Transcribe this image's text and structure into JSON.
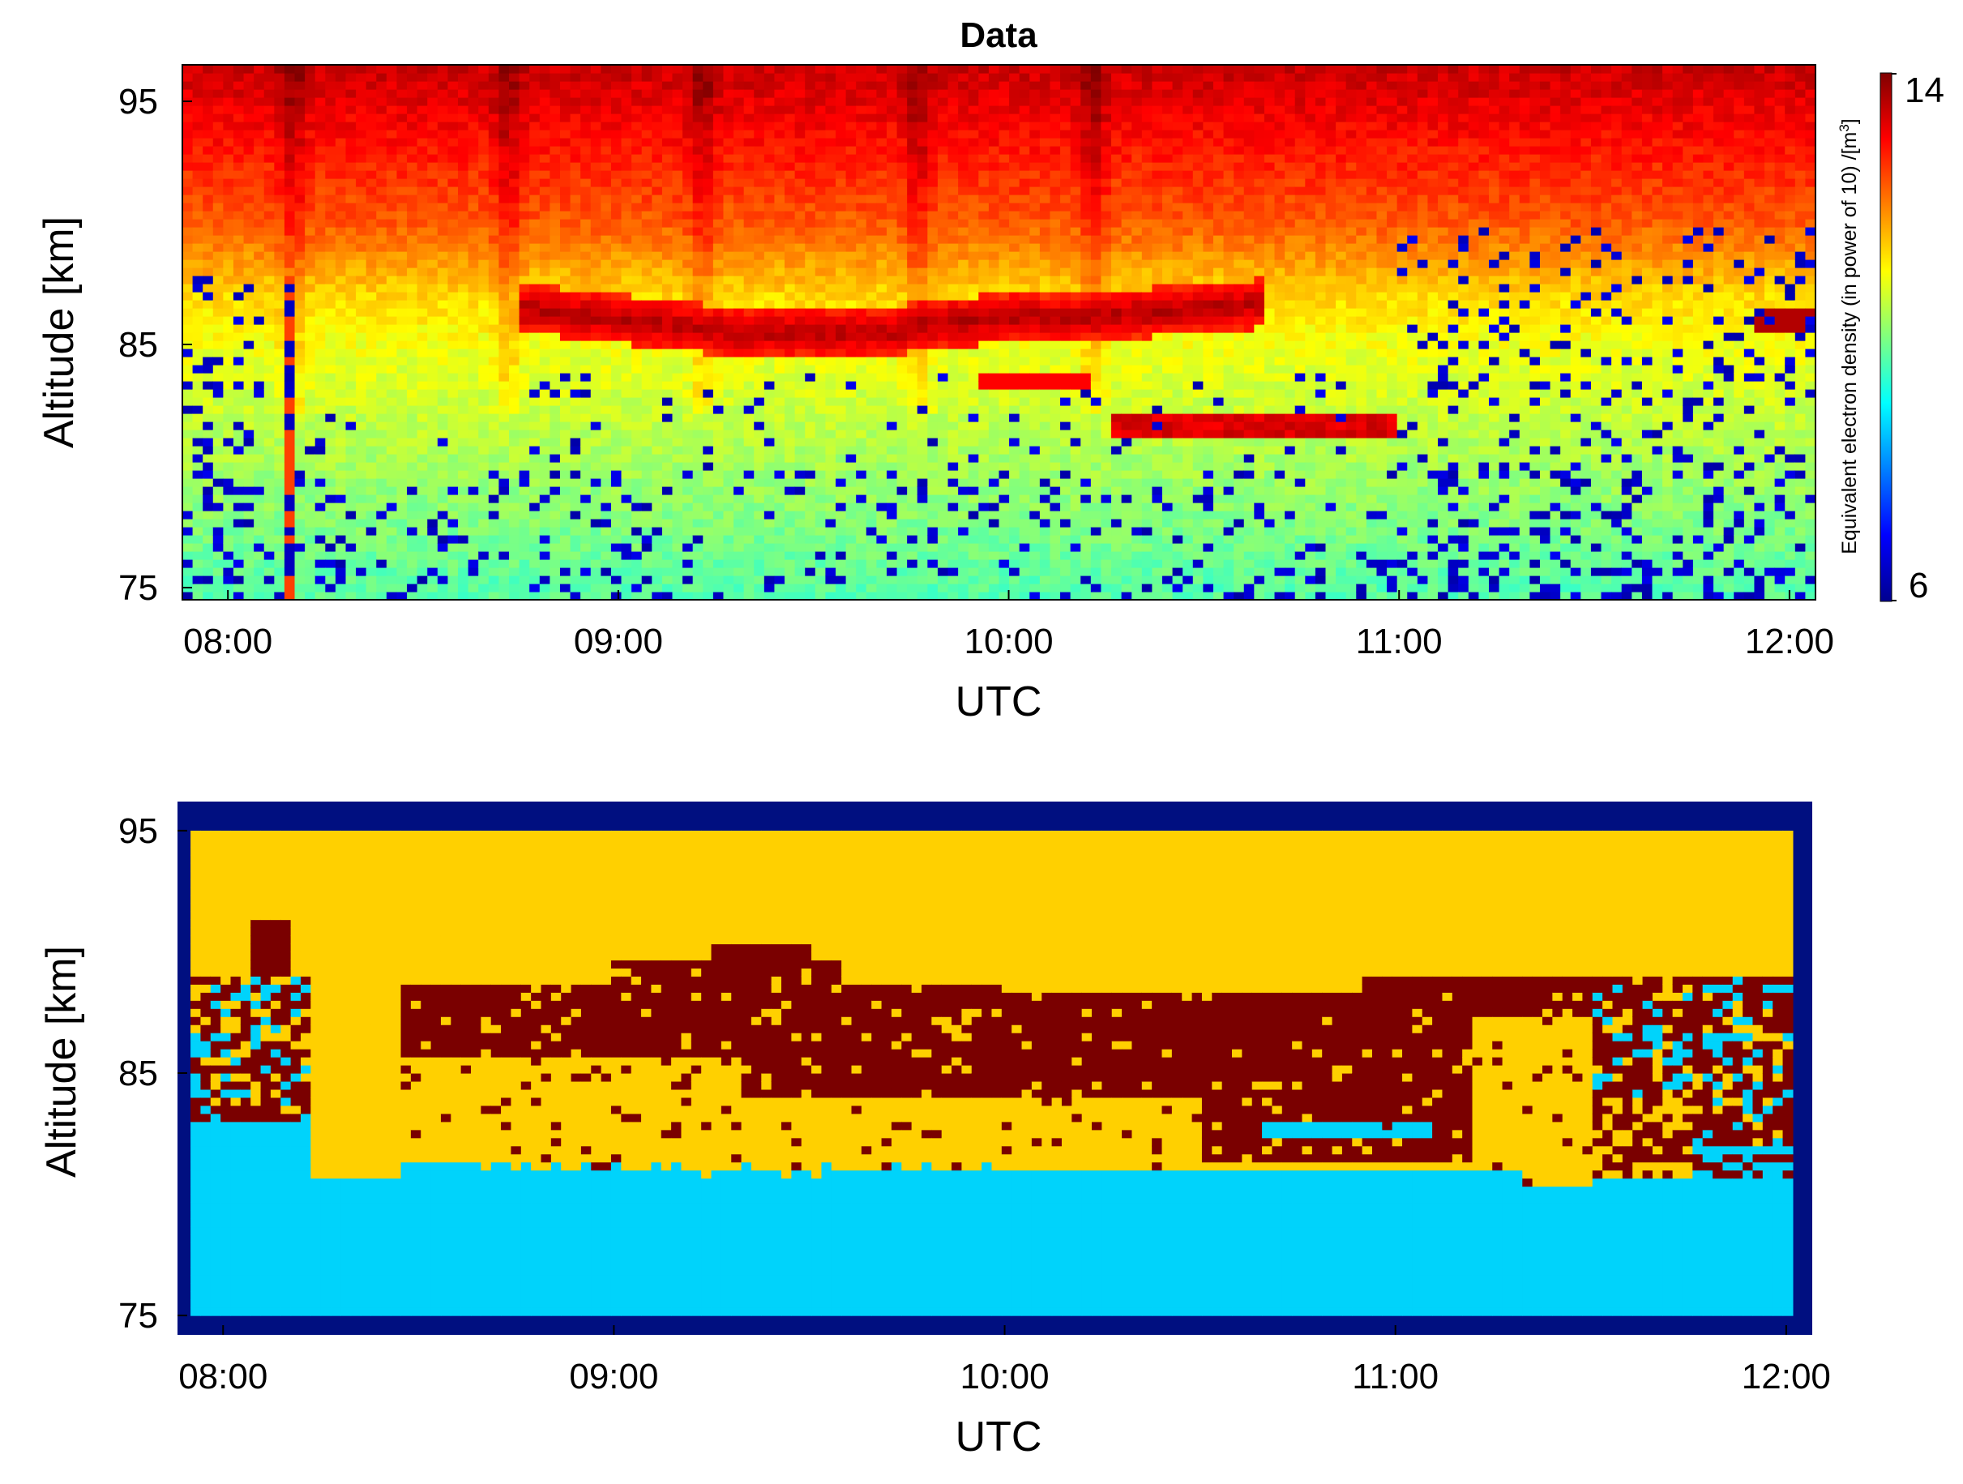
{
  "chart_data": [
    {
      "type": "heatmap",
      "title": "Data",
      "xlabel": "UTC",
      "ylabel": "Altitude [km]",
      "x_ticks": [
        "08:00",
        "09:00",
        "10:00",
        "11:00",
        "12:00"
      ],
      "y_ticks": [
        "75",
        "85",
        "95"
      ],
      "xlim": [
        "07:53",
        "12:04"
      ],
      "ylim": [
        74.5,
        96.5
      ],
      "colorbar": {
        "label": "Equivalent electron density (in power of 10) /[m",
        "label_superscript": "3",
        "label_suffix": "]",
        "min": 6,
        "max": 14,
        "tick_labels": [
          "14",
          "6"
        ],
        "colormap": "jet"
      },
      "features": {
        "background_levels": [
          {
            "altitude_km": 95,
            "value": 13.2
          },
          {
            "altitude_km": 90,
            "value": 12.3
          },
          {
            "altitude_km": 87,
            "value": 11.3
          },
          {
            "altitude_km": 85,
            "value": 10.9
          },
          {
            "altitude_km": 80,
            "value": 10.3
          },
          {
            "altitude_km": 75,
            "value": 9.7
          }
        ],
        "noise_floor_value": 6.3,
        "layer_value": 13.8,
        "enhanced_columns_utc": [
          "08:10",
          "08:43",
          "09:13",
          "09:46",
          "10:13"
        ],
        "vertical_stripe_utc": "08:10"
      }
    },
    {
      "type": "heatmap",
      "xlabel": "UTC",
      "ylabel": "Altitude [km]",
      "x_ticks": [
        "08:00",
        "09:00",
        "10:00",
        "11:00",
        "12:00"
      ],
      "y_ticks": [
        "75",
        "85",
        "95"
      ],
      "xlim": [
        "07:53",
        "12:04"
      ],
      "ylim": [
        74.2,
        96.2
      ],
      "classes": [
        {
          "id": 0,
          "color": "#000f80"
        },
        {
          "id": 1,
          "color": "#00d3fb"
        },
        {
          "id": 2,
          "color": "#ffd000"
        },
        {
          "id": 3,
          "color": "#7a0000"
        }
      ],
      "classified_range": {
        "x": [
          "07:55",
          "12:01"
        ],
        "y_km": [
          75,
          95
        ]
      }
    }
  ]
}
